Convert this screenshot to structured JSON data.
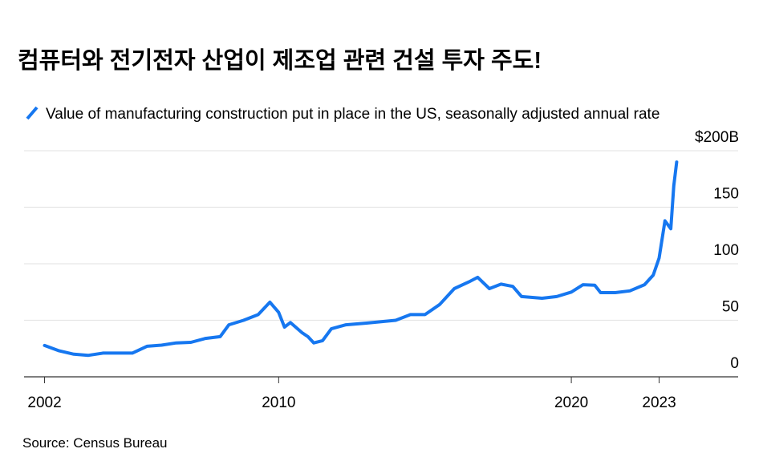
{
  "chart_data": {
    "type": "line",
    "title": "컴퓨터와 전기전자 산업이 제조업 관련 건설 투자 주도!",
    "source": "Source: Census Bureau",
    "x": [
      2002.0,
      2002.5,
      2003.0,
      2003.5,
      2004.0,
      2004.5,
      2005.0,
      2005.5,
      2006.0,
      2006.5,
      2007.0,
      2007.5,
      2008.0,
      2008.3,
      2008.8,
      2009.3,
      2009.7,
      2010.0,
      2010.2,
      2010.4,
      2010.8,
      2011.0,
      2011.2,
      2011.5,
      2011.8,
      2012.3,
      2013.0,
      2014.0,
      2014.5,
      2015.0,
      2015.5,
      2016.0,
      2016.5,
      2016.8,
      2017.2,
      2017.6,
      2018.0,
      2018.3,
      2019.0,
      2019.5,
      2020.0,
      2020.4,
      2020.8,
      2021.0,
      2021.5,
      2022.0,
      2022.5,
      2022.8,
      2023.0,
      2023.2,
      2023.4,
      2023.5,
      2023.6
    ],
    "series": [
      {
        "name": "Value of manufacturing construction put in place in the US, seasonally adjusted annual rate",
        "color": "#1677f0",
        "values": [
          27.7,
          23,
          20,
          19,
          21,
          21,
          21,
          27,
          28,
          30,
          30.5,
          34,
          35.5,
          46,
          50,
          55,
          66,
          57,
          44,
          48,
          39,
          35.5,
          30,
          32,
          42.5,
          46,
          47.5,
          50,
          55,
          55,
          64,
          78,
          84,
          88,
          78,
          82,
          80,
          71,
          69.5,
          71,
          75,
          81.5,
          81,
          74.5,
          74.5,
          76,
          81.5,
          90,
          105,
          138,
          131,
          169,
          190
        ]
      }
    ],
    "xlim": [
      2001.3,
      2025.7
    ],
    "xticks": [
      2002,
      2010,
      2020,
      2023
    ],
    "ylim": [
      0,
      200
    ],
    "yticks": [
      0,
      50,
      100,
      150,
      {
        "value": 200,
        "label": "$200B"
      }
    ],
    "grid": true
  }
}
